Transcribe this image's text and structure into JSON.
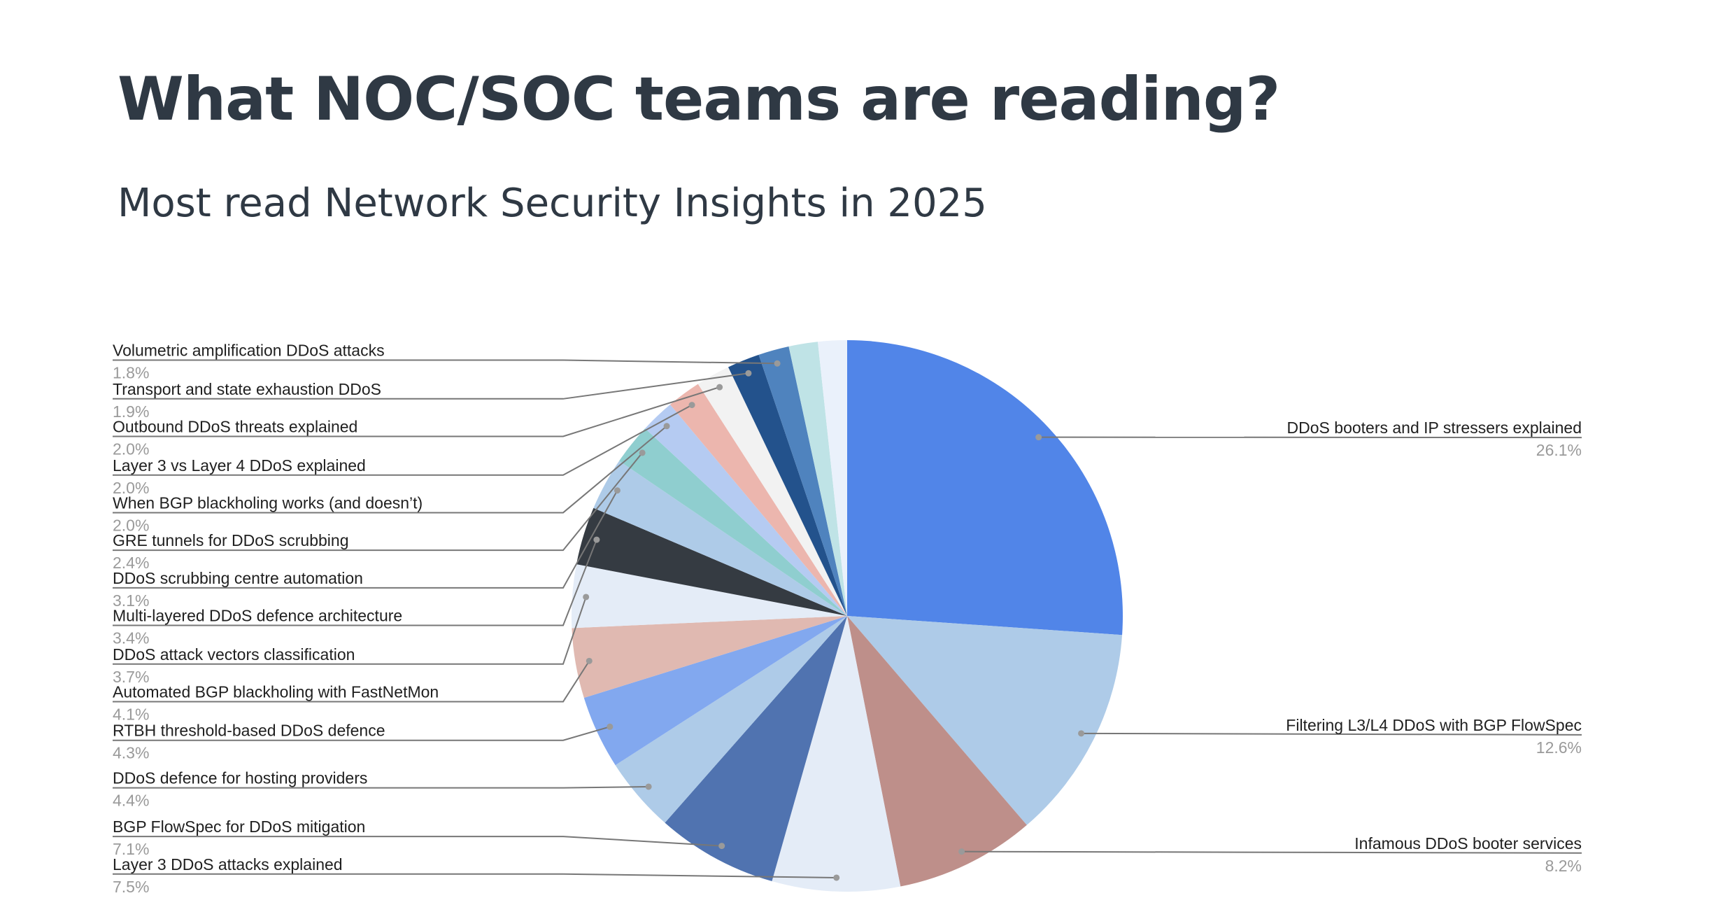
{
  "title": "What NOC/SOC teams are reading?",
  "subtitle": "Most read Network Security Insights in 2025",
  "chart_data": {
    "type": "pie",
    "title": "What NOC/SOC teams are reading?",
    "subtitle": "Most read Network Security Insights in 2025",
    "start": "12 o'clock, clockwise",
    "slices": [
      {
        "label": "DDoS booters and IP stressers explained",
        "value": 26.1,
        "pct_text": "26.1%",
        "color": "#5185e8",
        "side": "right"
      },
      {
        "label": "Filtering L3/L4 DDoS with BGP FlowSpec",
        "value": 12.6,
        "pct_text": "12.6%",
        "color": "#aecbe8",
        "side": "right"
      },
      {
        "label": "Infamous DDoS booter services",
        "value": 8.2,
        "pct_text": "8.2%",
        "color": "#be8f8a",
        "side": "right"
      },
      {
        "label": "Layer 3 DDoS attacks explained",
        "value": 7.5,
        "pct_text": "7.5%",
        "color": "#e4ecf7",
        "side": "left"
      },
      {
        "label": "BGP FlowSpec for DDoS mitigation",
        "value": 7.1,
        "pct_text": "7.1%",
        "color": "#5073b0",
        "side": "left"
      },
      {
        "label": "DDoS defence for hosting providers",
        "value": 4.4,
        "pct_text": "4.4%",
        "color": "#aecbe8",
        "side": "left"
      },
      {
        "label": "RTBH threshold-based DDoS defence",
        "value": 4.3,
        "pct_text": "4.3%",
        "color": "#82a8ef",
        "side": "left"
      },
      {
        "label": "Automated BGP blackholing with FastNetMon",
        "value": 4.1,
        "pct_text": "4.1%",
        "color": "#e0b9b1",
        "side": "left"
      },
      {
        "label": "DDoS attack vectors classification",
        "value": 3.7,
        "pct_text": "3.7%",
        "color": "#e4ecf7",
        "side": "left"
      },
      {
        "label": "Multi-layered DDoS defence architecture",
        "value": 3.4,
        "pct_text": "3.4%",
        "color": "#353b42",
        "side": "left"
      },
      {
        "label": "DDoS scrubbing centre automation",
        "value": 3.1,
        "pct_text": "3.1%",
        "color": "#aecbe8",
        "side": "left"
      },
      {
        "label": "GRE tunnels for DDoS scrubbing",
        "value": 2.4,
        "pct_text": "2.4%",
        "color": "#8fcecf",
        "side": "left"
      },
      {
        "label": "When BGP blackholing works (and doesn’t)",
        "value": 2.0,
        "pct_text": "2.0%",
        "color": "#b5cbf2",
        "side": "left"
      },
      {
        "label": "Layer 3 vs Layer 4 DDoS explained",
        "value": 2.0,
        "pct_text": "2.0%",
        "color": "#ecb6ae",
        "side": "left"
      },
      {
        "label": "Outbound DDoS threats explained",
        "value": 2.0,
        "pct_text": "2.0%",
        "color": "#f2f2f2",
        "side": "left"
      },
      {
        "label": "Transport and state exhaustion DDoS",
        "value": 1.9,
        "pct_text": "1.9%",
        "color": "#23528c",
        "side": "left"
      },
      {
        "label": "Volumetric amplification DDoS attacks",
        "value": 1.8,
        "pct_text": "1.8%",
        "color": "#4f83be",
        "side": "left"
      },
      {
        "label": "",
        "value": 1.7,
        "pct_text": "",
        "color": "#bfe3e6",
        "side": "none"
      },
      {
        "label": "",
        "value": 1.7,
        "pct_text": "",
        "color": "#eaf1fb",
        "side": "none"
      }
    ]
  }
}
